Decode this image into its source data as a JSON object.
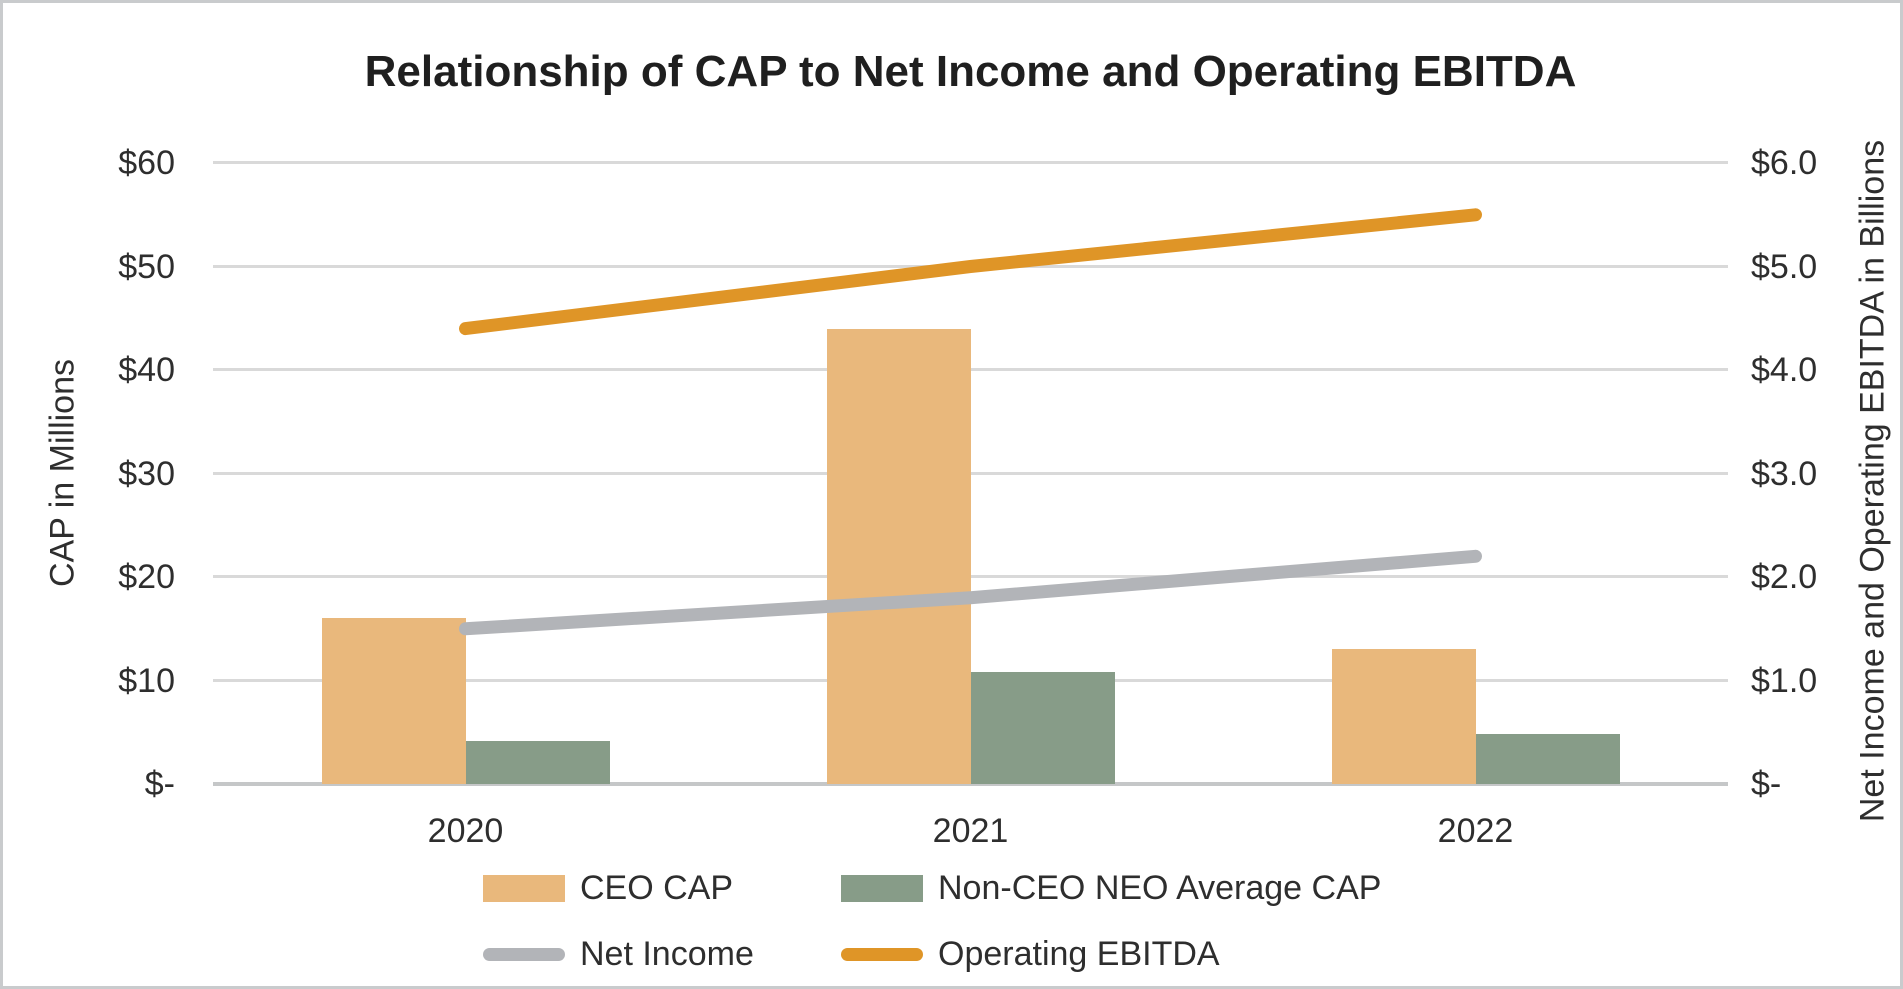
{
  "chart_data": {
    "type": "combo-bar-line",
    "title": "Relationship of CAP to Net Income and Operating EBITDA",
    "categories": [
      "2020",
      "2021",
      "2022"
    ],
    "bar_series": [
      {
        "name": "CEO CAP",
        "axis": "left",
        "color": "#e9b87c",
        "values": [
          16.0,
          44.0,
          13.0
        ]
      },
      {
        "name": "Non-CEO NEO Average CAP",
        "axis": "left",
        "color": "#879c88",
        "values": [
          4.2,
          10.8,
          4.8
        ]
      }
    ],
    "line_series": [
      {
        "name": "Net Income",
        "axis": "right",
        "color": "#b2b4b8",
        "values": [
          1.5,
          1.8,
          2.2
        ]
      },
      {
        "name": "Operating EBITDA",
        "axis": "right",
        "color": "#df9527",
        "values": [
          4.4,
          5.0,
          5.5
        ]
      }
    ],
    "left_axis": {
      "title": "CAP in Millions",
      "min": 0,
      "max": 60,
      "ticks_bottom_to_top": [
        "$-",
        "$10",
        "$20",
        "$30",
        "$40",
        "$50",
        "$60"
      ]
    },
    "right_axis": {
      "title": "Net Income and Operating EBITDA in Billions",
      "min": 0,
      "max": 6,
      "ticks_bottom_to_top": [
        "$-",
        "$1.0",
        "$2.0",
        "$3.0",
        "$4.0",
        "$5.0",
        "$6.0"
      ]
    },
    "grid": true,
    "legend_position": "bottom",
    "colors": {
      "gridline": "#d9d9d9",
      "axis_line": "#c5c7c8",
      "text": "#2e2e2e",
      "title_text": "#1f1f1f"
    }
  }
}
